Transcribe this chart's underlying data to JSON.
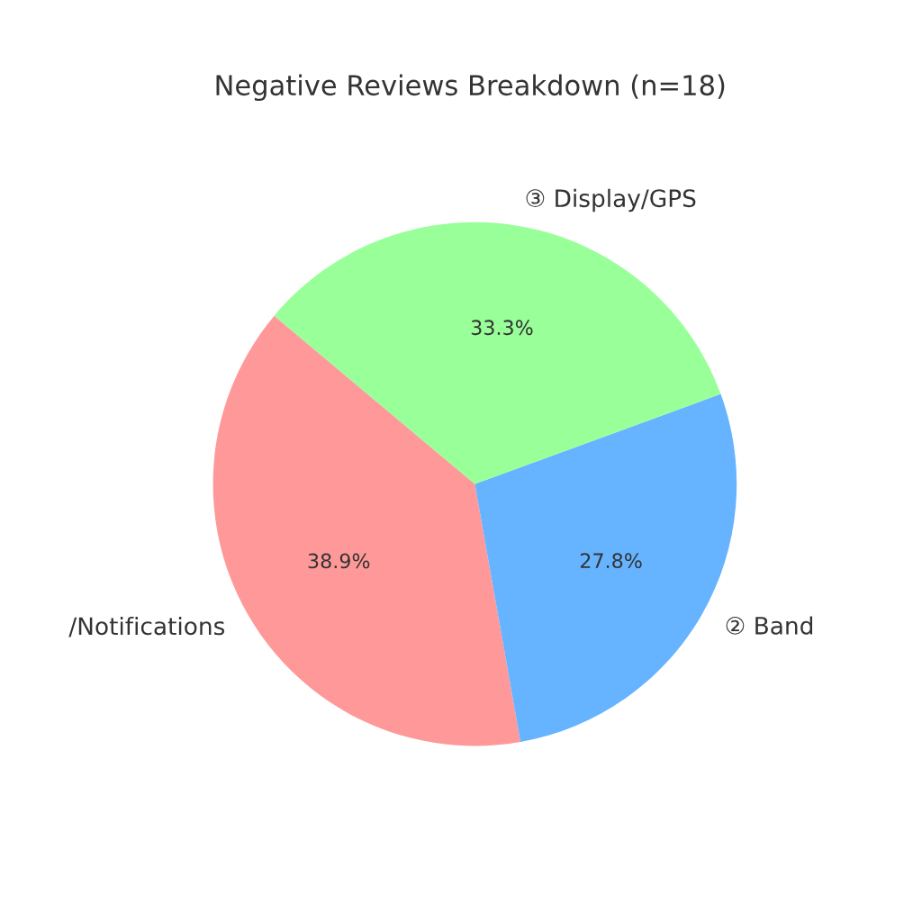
{
  "chart_data": {
    "type": "pie",
    "title": "Negative Reviews Breakdown (n=18)",
    "categories": [
      "/Notifications",
      "② Band",
      "③ Display/GPS"
    ],
    "values": [
      38.9,
      27.8,
      33.3
    ],
    "colors": [
      "#ff9999",
      "#66b3ff",
      "#99ff99"
    ],
    "value_labels": [
      "38.9%",
      "27.8%",
      "33.3%"
    ]
  }
}
